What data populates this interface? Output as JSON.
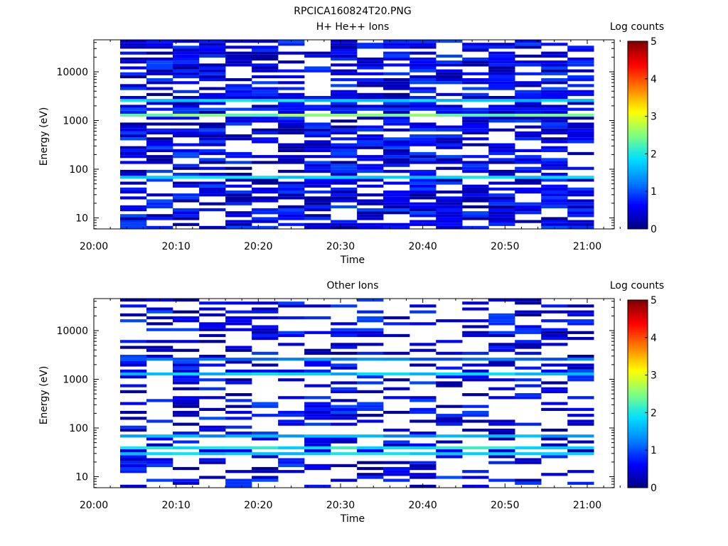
{
  "figure_title": "RPCICA160824T20.PNG",
  "colors": {
    "colormap": [
      "#000080",
      "#0000ff",
      "#0080ff",
      "#00e0ff",
      "#80ff80",
      "#ffff00",
      "#ff8000",
      "#ff0000",
      "#800000"
    ],
    "axis": "#000000",
    "background": "#ffffff"
  },
  "chart_data": [
    {
      "type": "heatmap",
      "title": "H+ He++ Ions",
      "xlabel": "Time",
      "ylabel": "Energy (eV)",
      "y_scale": "log",
      "x_ticks": [
        "20:00",
        "20:10",
        "20:20",
        "20:30",
        "20:40",
        "20:50",
        "21:00"
      ],
      "y_ticks": [
        "10",
        "100",
        "1000",
        "10000"
      ],
      "colorbar_label": "Log counts",
      "colorbar_ticks": [
        "0",
        "1",
        "2",
        "3",
        "4",
        "5"
      ],
      "z_range": [
        0,
        5
      ],
      "grid": false,
      "time_bins_start": "20:03",
      "time_bin_minutes": 3.2,
      "time_bin_count": 18,
      "bands": [
        {
          "energy_ev": 1300,
          "mean_log_counts": 2.5
        },
        {
          "energy_ev": 2600,
          "mean_log_counts": 1.8
        },
        {
          "energy_ev": 65,
          "mean_log_counts": 1.9
        },
        {
          "energy_ev": 1800,
          "mean_log_counts": 0.8
        }
      ]
    },
    {
      "type": "heatmap",
      "title": "Other Ions",
      "xlabel": "Time",
      "ylabel": "Energy (eV)",
      "y_scale": "log",
      "x_ticks": [
        "20:00",
        "20:10",
        "20:20",
        "20:30",
        "20:40",
        "20:50",
        "21:00"
      ],
      "y_ticks": [
        "10",
        "100",
        "1000",
        "10000"
      ],
      "colorbar_label": "Log counts",
      "colorbar_ticks": [
        "0",
        "1",
        "2",
        "3",
        "4",
        "5"
      ],
      "z_range": [
        0,
        5
      ],
      "grid": false,
      "time_bins_start": "20:03",
      "time_bin_minutes": 3.2,
      "time_bin_count": 18,
      "bands": [
        {
          "energy_ev": 1300,
          "mean_log_counts": 1.7
        },
        {
          "energy_ev": 2700,
          "mean_log_counts": 1.2
        },
        {
          "energy_ev": 40,
          "mean_log_counts": 2.0
        },
        {
          "energy_ev": 30,
          "mean_log_counts": 1.8
        },
        {
          "energy_ev": 65,
          "mean_log_counts": 1.5
        }
      ]
    }
  ]
}
